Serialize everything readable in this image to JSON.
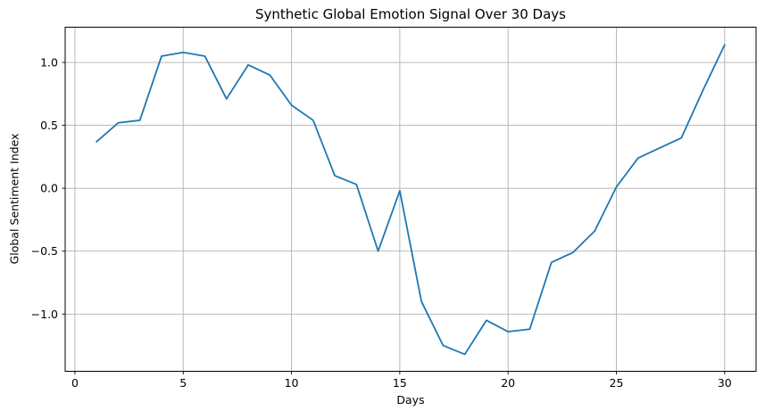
{
  "chart_data": {
    "type": "line",
    "title": "Synthetic Global Emotion Signal Over 30 Days",
    "xlabel": "Days",
    "ylabel": "Global Sentiment Index",
    "x": [
      1,
      2,
      3,
      4,
      5,
      6,
      7,
      8,
      9,
      10,
      11,
      12,
      13,
      14,
      15,
      16,
      17,
      18,
      19,
      20,
      21,
      22,
      23,
      24,
      25,
      26,
      27,
      28,
      29,
      30
    ],
    "y": [
      0.37,
      0.52,
      0.54,
      1.05,
      1.08,
      1.05,
      0.71,
      0.98,
      0.9,
      0.66,
      0.54,
      0.1,
      0.03,
      -0.5,
      -0.02,
      -0.9,
      -1.25,
      -1.32,
      -1.05,
      -1.14,
      -1.12,
      -0.59,
      -0.51,
      -0.34,
      0.01,
      0.24,
      0.32,
      0.4,
      0.78,
      1.14
    ],
    "xlim": [
      -0.45,
      31.45
    ],
    "ylim": [
      -1.455,
      1.28
    ],
    "xticks": [
      0,
      5,
      10,
      15,
      20,
      25,
      30
    ],
    "yticks": [
      -1.0,
      -0.5,
      0.0,
      0.5,
      1.0
    ],
    "grid": true,
    "legend": "none",
    "line_color": "#1f77b4",
    "grid_color": "#b0b0b0",
    "spine_color": "#000000",
    "background": "#ffffff"
  }
}
